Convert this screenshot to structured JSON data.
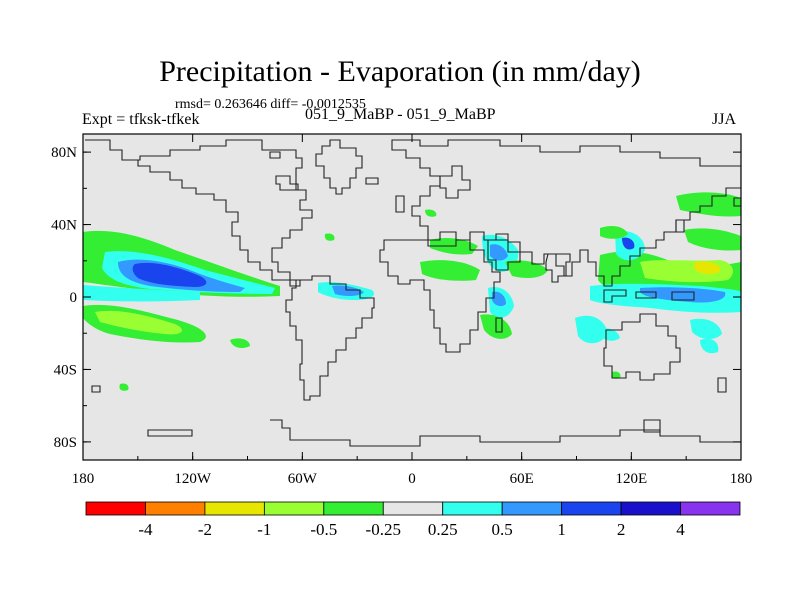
{
  "figure": {
    "title": "Precipitation - Evaporation (in mm/day)",
    "stats": "rmsd= 0.263646 diff= -0.0012535",
    "experiment": "Expt = tfksk-tfkek",
    "cases": "051_9_MaBP - 051_9_MaBP",
    "season": "JJA"
  },
  "map": {
    "lat_ticks": [
      {
        "value": 80,
        "label": "80N"
      },
      {
        "value": 40,
        "label": "40N"
      },
      {
        "value": 0,
        "label": "0"
      },
      {
        "value": -40,
        "label": "40S"
      },
      {
        "value": -80,
        "label": "80S"
      }
    ],
    "lon_ticks": [
      {
        "value": -180,
        "label": "180"
      },
      {
        "value": -120,
        "label": "120W"
      },
      {
        "value": -60,
        "label": "60W"
      },
      {
        "value": 0,
        "label": "0"
      },
      {
        "value": 60,
        "label": "60E"
      },
      {
        "value": 120,
        "label": "120E"
      },
      {
        "value": 180,
        "label": "180"
      }
    ],
    "lon_range": [
      -180,
      180
    ],
    "lat_range": [
      -90,
      90
    ]
  },
  "colorbar": {
    "colors": [
      "#ff0000",
      "#ff8000",
      "#e6e600",
      "#99ff33",
      "#33ee33",
      "#e6e6e6",
      "#33ffee",
      "#3399ff",
      "#1a44ee",
      "#1a10cc",
      "#8833ee"
    ],
    "labels": [
      "-4",
      "-2",
      "-1",
      "-0.5",
      "-0.25",
      "0.25",
      "0.5",
      "1",
      "2",
      "4"
    ]
  }
}
